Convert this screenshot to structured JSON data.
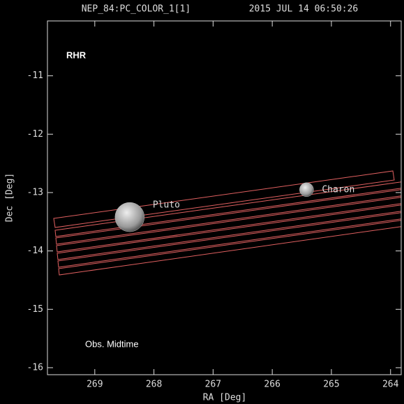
{
  "chart_data": {
    "type": "scatter",
    "title": "NEP_84:PC_COLOR_1[1]",
    "subtitle": "2015 JUL 14 06:50:26",
    "x_label": "RA [Deg]",
    "y_label": "Dec [Deg]",
    "annotations": [
      "RHR",
      "Obs. Midtime"
    ],
    "xlim": [
      269.8,
      263.82
    ],
    "xticks": [
      269,
      268,
      267,
      266,
      265,
      264
    ],
    "ylim": [
      -16.12,
      -10.06
    ],
    "yticks": [
      -11,
      -12,
      -13,
      -14,
      -15,
      -16
    ],
    "points": [
      {
        "name": "Pluto",
        "x": 268.41,
        "y": -13.42
      },
      {
        "name": "Charon",
        "x": 265.42,
        "y": -12.95
      }
    ]
  }
}
